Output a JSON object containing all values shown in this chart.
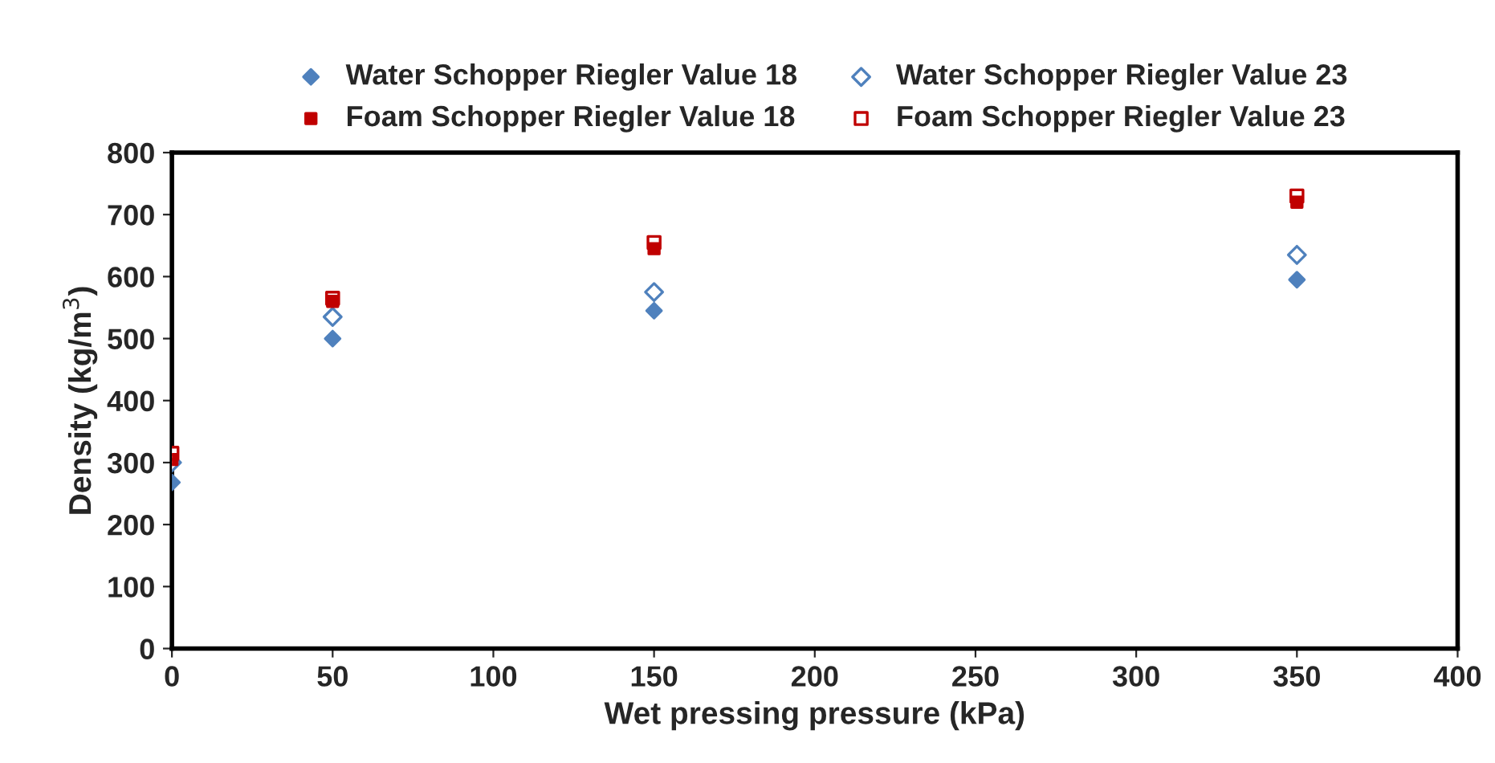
{
  "chart_data": {
    "type": "scatter",
    "xlabel": "Wet pressing pressure (kPa)",
    "ylabel": "Density (kg/m$^{3}$)",
    "x": [
      0,
      50,
      150,
      350
    ],
    "series": [
      {
        "name": "Water Schopper Riegler Value 18",
        "color": "#4f81bd",
        "marker": "diamond",
        "values": [
          268,
          500,
          545,
          595
        ]
      },
      {
        "name": "Water Schopper Riegler Value 23",
        "color": "#4f81bd",
        "marker": "diamond",
        "values": [
          300,
          535,
          575,
          635
        ]
      },
      {
        "name": "Foam Schopper Riegler Value 18",
        "color": "#c00000",
        "marker": "square",
        "values": [
          305,
          560,
          645,
          720
        ]
      },
      {
        "name": "Foam Schopper Riegler Value 23",
        "color": "#c00000",
        "marker": "square",
        "values": [
          315,
          565,
          655,
          730
        ]
      }
    ],
    "xlim": [
      0,
      400
    ],
    "xticks": [
      0,
      50,
      100,
      150,
      200,
      250,
      300,
      350,
      400
    ],
    "ylim": [
      0,
      800
    ],
    "yticks": [
      0,
      100,
      200,
      300,
      400,
      500,
      600,
      700,
      800
    ],
    "grid": false,
    "legend": "top"
  }
}
